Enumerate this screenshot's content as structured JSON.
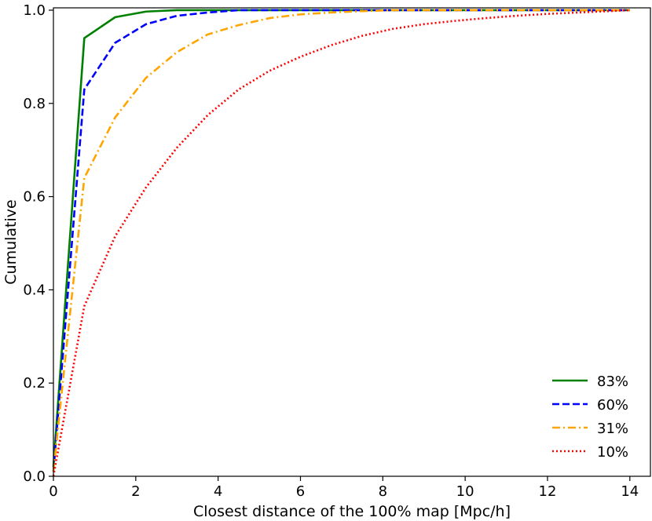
{
  "chart_data": {
    "type": "line",
    "xlabel": "Closest distance of the 100% map [Mpc/h]",
    "ylabel": "Cumulative",
    "xlim": [
      0,
      14.5
    ],
    "ylim": [
      0,
      1.005
    ],
    "xticks": [
      "0",
      "2",
      "4",
      "6",
      "8",
      "10",
      "12",
      "14"
    ],
    "yticks": [
      "0.0",
      "0.2",
      "0.4",
      "0.6",
      "0.8",
      "1.0"
    ],
    "grid": false,
    "legend_position": "bottom-right",
    "series": [
      {
        "name": "83%",
        "color": "#008000",
        "style": "solid",
        "x": [
          0,
          0.75,
          1.5,
          2.25,
          3.0,
          3.75,
          14
        ],
        "y": [
          0.02,
          0.94,
          0.985,
          0.997,
          1.0,
          1.0,
          1.0
        ]
      },
      {
        "name": "60%",
        "color": "#0000ff",
        "style": "dashed",
        "x": [
          0,
          0.75,
          1.5,
          2.25,
          3.0,
          3.75,
          4.5,
          14
        ],
        "y": [
          0.01,
          0.83,
          0.93,
          0.97,
          0.988,
          0.995,
          1.0,
          1.0
        ]
      },
      {
        "name": "31%",
        "color": "#ffa500",
        "style": "dashdot",
        "x": [
          0,
          0.75,
          1.5,
          2.25,
          3.0,
          3.75,
          4.5,
          5.25,
          6.0,
          6.75,
          7.5,
          8.25,
          9.0,
          14
        ],
        "y": [
          0.01,
          0.64,
          0.77,
          0.855,
          0.91,
          0.948,
          0.968,
          0.983,
          0.991,
          0.995,
          0.998,
          1.0,
          1.0,
          1.0
        ]
      },
      {
        "name": "10%",
        "color": "#ff0000",
        "style": "dotted",
        "x": [
          0,
          0.75,
          1.5,
          2.25,
          3.0,
          3.75,
          4.5,
          5.25,
          6.0,
          6.75,
          7.5,
          8.25,
          9.0,
          9.75,
          10.5,
          11.25,
          12.0,
          12.75,
          13.5,
          14
        ],
        "y": [
          0.0,
          0.365,
          0.515,
          0.62,
          0.705,
          0.775,
          0.83,
          0.87,
          0.9,
          0.925,
          0.945,
          0.96,
          0.97,
          0.977,
          0.983,
          0.988,
          0.992,
          0.995,
          0.998,
          1.0
        ]
      }
    ]
  }
}
